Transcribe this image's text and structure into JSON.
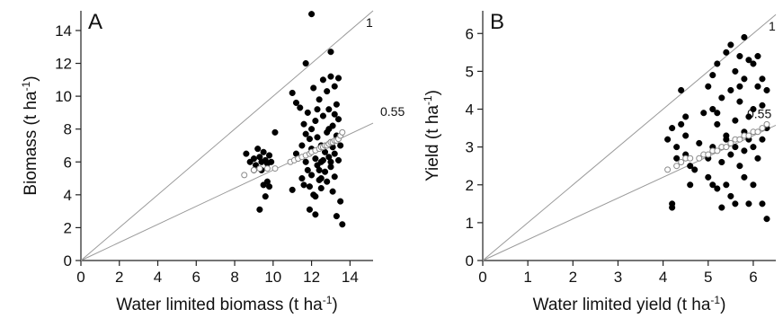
{
  "chart_data": [
    {
      "type": "scatter",
      "panel_label": "A",
      "xlabel": "Water limited biomass (t ha",
      "xlabel_sup": "-1",
      "xlabel_end": ")",
      "ylabel": "Biomass (t ha",
      "ylabel_sup": "-1",
      "ylabel_end": ")",
      "xlim": [
        0,
        15.2
      ],
      "ylim": [
        0,
        15.2
      ],
      "xticks": [
        0,
        2,
        4,
        6,
        8,
        10,
        12,
        14
      ],
      "yticks": [
        0,
        2,
        4,
        6,
        8,
        10,
        12,
        14
      ],
      "reference_lines": [
        {
          "slope": 1,
          "label": "1"
        },
        {
          "slope": 0.55,
          "label": "0.55"
        }
      ],
      "series": [
        {
          "marker": "filled",
          "points": [
            [
              8.6,
              6.5
            ],
            [
              8.8,
              6.0
            ],
            [
              9.0,
              6.2
            ],
            [
              9.1,
              5.8
            ],
            [
              9.2,
              6.8
            ],
            [
              9.3,
              6.3
            ],
            [
              9.4,
              6.0
            ],
            [
              9.4,
              5.5
            ],
            [
              9.5,
              6.6
            ],
            [
              9.5,
              4.6
            ],
            [
              9.6,
              6.1
            ],
            [
              9.6,
              3.9
            ],
            [
              9.7,
              5.9
            ],
            [
              9.7,
              4.8
            ],
            [
              9.8,
              6.4
            ],
            [
              9.8,
              4.5
            ],
            [
              9.9,
              6.0
            ],
            [
              9.3,
              3.1
            ],
            [
              10.1,
              7.8
            ],
            [
              9.0,
              5.5
            ],
            [
              11.0,
              10.2
            ],
            [
              11.2,
              9.6
            ],
            [
              11.0,
              4.3
            ],
            [
              11.2,
              6.5
            ],
            [
              11.4,
              9.3
            ],
            [
              11.5,
              7.0
            ],
            [
              11.5,
              5.0
            ],
            [
              11.6,
              8.3
            ],
            [
              11.6,
              4.6
            ],
            [
              11.7,
              6.0
            ],
            [
              11.7,
              12.0
            ],
            [
              11.8,
              9.0
            ],
            [
              11.8,
              5.5
            ],
            [
              11.9,
              7.4
            ],
            [
              11.9,
              3.1
            ],
            [
              12.0,
              15.0
            ],
            [
              12.0,
              6.8
            ],
            [
              12.0,
              5.2
            ],
            [
              12.1,
              10.5
            ],
            [
              12.1,
              4.0
            ],
            [
              12.2,
              8.5
            ],
            [
              12.2,
              6.2
            ],
            [
              12.2,
              2.8
            ],
            [
              12.3,
              7.5
            ],
            [
              12.3,
              5.8
            ],
            [
              12.4,
              9.8
            ],
            [
              12.4,
              4.9
            ],
            [
              12.5,
              7.0
            ],
            [
              12.5,
              6.0
            ],
            [
              12.5,
              4.4
            ],
            [
              12.6,
              8.8
            ],
            [
              12.6,
              11.0
            ],
            [
              12.7,
              6.6
            ],
            [
              12.7,
              5.4
            ],
            [
              12.8,
              7.8
            ],
            [
              12.8,
              4.8
            ],
            [
              12.9,
              9.2
            ],
            [
              12.9,
              6.3
            ],
            [
              13.0,
              11.2
            ],
            [
              13.0,
              7.2
            ],
            [
              13.0,
              5.7
            ],
            [
              13.0,
              12.7
            ],
            [
              13.1,
              8.2
            ],
            [
              13.1,
              6.9
            ],
            [
              13.1,
              4.2
            ],
            [
              13.2,
              10.6
            ],
            [
              13.2,
              6.5
            ],
            [
              13.2,
              5.1
            ],
            [
              13.3,
              9.5
            ],
            [
              13.3,
              7.6
            ],
            [
              13.3,
              2.7
            ],
            [
              13.4,
              8.6
            ],
            [
              13.4,
              6.1
            ],
            [
              13.5,
              3.6
            ],
            [
              13.6,
              2.2
            ],
            [
              13.5,
              7.0
            ],
            [
              13.4,
              11.1
            ],
            [
              12.9,
              8.0
            ],
            [
              12.6,
              6.1
            ],
            [
              12.3,
              9.2
            ],
            [
              12.0,
              8.0
            ],
            [
              11.9,
              4.5
            ],
            [
              12.5,
              5.0
            ],
            [
              13.0,
              6.0
            ],
            [
              12.8,
              10.3
            ],
            [
              12.2,
              3.9
            ],
            [
              11.7,
              7.7
            ],
            [
              13.2,
              8.9
            ],
            [
              12.4,
              5.5
            ]
          ]
        },
        {
          "marker": "open",
          "points": [
            [
              8.5,
              5.2
            ],
            [
              9.0,
              5.5
            ],
            [
              9.3,
              5.6
            ],
            [
              9.7,
              5.6
            ],
            [
              10.1,
              5.6
            ],
            [
              10.9,
              6.0
            ],
            [
              11.1,
              6.1
            ],
            [
              11.3,
              6.2
            ],
            [
              11.5,
              6.3
            ],
            [
              11.7,
              6.4
            ],
            [
              11.9,
              6.5
            ],
            [
              12.0,
              6.6
            ],
            [
              12.2,
              6.7
            ],
            [
              12.4,
              6.8
            ],
            [
              12.5,
              6.9
            ],
            [
              12.6,
              6.9
            ],
            [
              12.7,
              7.0
            ],
            [
              12.8,
              7.0
            ],
            [
              12.9,
              7.1
            ],
            [
              13.0,
              7.2
            ],
            [
              13.1,
              7.2
            ],
            [
              13.2,
              7.3
            ],
            [
              13.3,
              7.3
            ],
            [
              13.4,
              7.4
            ],
            [
              13.5,
              7.6
            ],
            [
              13.6,
              7.8
            ]
          ]
        }
      ]
    },
    {
      "type": "scatter",
      "panel_label": "B",
      "xlabel": "Water limited yield (t ha",
      "xlabel_sup": "-1",
      "xlabel_end": ")",
      "ylabel": "Yield (t ha",
      "ylabel_sup": "-1",
      "ylabel_end": ")",
      "xlim": [
        0,
        6.5
      ],
      "ylim": [
        0,
        6.6
      ],
      "xticks": [
        0,
        1,
        2,
        3,
        4,
        5,
        6
      ],
      "yticks": [
        0,
        1,
        2,
        3,
        4,
        5,
        6
      ],
      "reference_lines": [
        {
          "slope": 1,
          "label": "1"
        },
        {
          "slope": 0.55,
          "label": "0.55"
        }
      ],
      "series": [
        {
          "marker": "filled",
          "points": [
            [
              4.1,
              3.2
            ],
            [
              4.2,
              3.5
            ],
            [
              4.2,
              1.5
            ],
            [
              4.2,
              1.4
            ],
            [
              4.3,
              3.0
            ],
            [
              4.3,
              2.7
            ],
            [
              4.4,
              3.6
            ],
            [
              4.4,
              4.5
            ],
            [
              4.5,
              3.8
            ],
            [
              4.5,
              3.3
            ],
            [
              4.6,
              2.5
            ],
            [
              4.6,
              2.0
            ],
            [
              4.5,
              2.8
            ],
            [
              4.9,
              3.9
            ],
            [
              5.0,
              4.6
            ],
            [
              5.0,
              2.2
            ],
            [
              5.1,
              4.9
            ],
            [
              5.1,
              3.0
            ],
            [
              5.1,
              2.0
            ],
            [
              5.2,
              5.2
            ],
            [
              5.2,
              3.6
            ],
            [
              5.2,
              1.9
            ],
            [
              5.3,
              4.3
            ],
            [
              5.3,
              2.6
            ],
            [
              5.3,
              1.4
            ],
            [
              5.4,
              5.5
            ],
            [
              5.4,
              3.3
            ],
            [
              5.4,
              2.0
            ],
            [
              5.5,
              5.7
            ],
            [
              5.5,
              4.5
            ],
            [
              5.5,
              2.8
            ],
            [
              5.5,
              1.7
            ],
            [
              5.6,
              5.0
            ],
            [
              5.6,
              3.0
            ],
            [
              5.6,
              1.5
            ],
            [
              5.7,
              4.2
            ],
            [
              5.7,
              5.4
            ],
            [
              5.7,
              2.5
            ],
            [
              5.8,
              5.9
            ],
            [
              5.8,
              4.8
            ],
            [
              5.8,
              3.4
            ],
            [
              5.8,
              2.2
            ],
            [
              5.9,
              3.8
            ],
            [
              5.9,
              5.3
            ],
            [
              5.9,
              1.5
            ],
            [
              6.0,
              4.0
            ],
            [
              6.0,
              5.2
            ],
            [
              6.0,
              3.0
            ],
            [
              6.1,
              4.6
            ],
            [
              6.1,
              5.4
            ],
            [
              6.1,
              2.7
            ],
            [
              6.2,
              4.1
            ],
            [
              6.2,
              1.5
            ],
            [
              6.3,
              3.5
            ],
            [
              6.3,
              4.5
            ],
            [
              6.3,
              1.1
            ],
            [
              4.8,
              3.1
            ],
            [
              5.0,
              2.7
            ],
            [
              5.6,
              3.7
            ],
            [
              5.9,
              3.2
            ],
            [
              6.2,
              4.8
            ],
            [
              6.0,
              2.0
            ],
            [
              5.2,
              3.9
            ],
            [
              5.7,
              4.6
            ],
            [
              4.7,
              2.4
            ],
            [
              5.4,
              3.2
            ],
            [
              6.2,
              3.2
            ],
            [
              5.8,
              2.9
            ],
            [
              5.1,
              4.0
            ]
          ]
        },
        {
          "marker": "open",
          "points": [
            [
              4.1,
              2.4
            ],
            [
              4.3,
              2.5
            ],
            [
              4.4,
              2.6
            ],
            [
              4.5,
              2.7
            ],
            [
              4.6,
              2.7
            ],
            [
              4.8,
              2.7
            ],
            [
              4.9,
              2.8
            ],
            [
              5.0,
              2.8
            ],
            [
              5.1,
              2.9
            ],
            [
              5.2,
              2.9
            ],
            [
              5.3,
              3.0
            ],
            [
              5.4,
              3.0
            ],
            [
              5.5,
              3.1
            ],
            [
              5.6,
              3.2
            ],
            [
              5.7,
              3.2
            ],
            [
              5.8,
              3.3
            ],
            [
              5.9,
              3.3
            ],
            [
              6.0,
              3.4
            ],
            [
              6.1,
              3.4
            ],
            [
              6.2,
              3.5
            ],
            [
              6.3,
              3.6
            ]
          ]
        }
      ]
    }
  ]
}
